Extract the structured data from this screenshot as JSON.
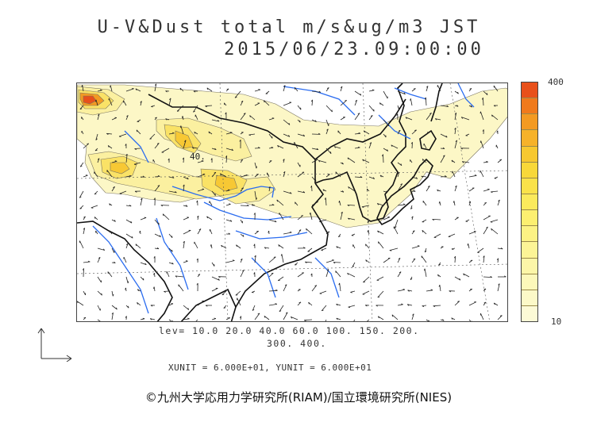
{
  "title_line1": "U-V&Dust total m/s&ug/m3 JST",
  "title_line2": "2015/06/23.09:00:00",
  "colorbar": {
    "max_label": "400",
    "min_label": "10",
    "colors": [
      "#e8501a",
      "#f07a1c",
      "#f39a22",
      "#f6b22a",
      "#f7c830",
      "#f8d83a",
      "#fae24a",
      "#fbea5c",
      "#fcef70",
      "#fcf284",
      "#fcf496",
      "#fcf6a8",
      "#fcf8ba",
      "#fcf9c8",
      "#fcfad6"
    ]
  },
  "levels_line1": "lev= 10.0 20.0 40.0 60.0 100. 150. 200.",
  "levels_line2": "300. 400.",
  "contour_label": "40.",
  "units": "XUNIT = 6.000E+01, YUNIT = 6.000E+01",
  "copyright": "©九州大学応用力学研究所(RIAM)/国立環境研究所(NIES)"
}
